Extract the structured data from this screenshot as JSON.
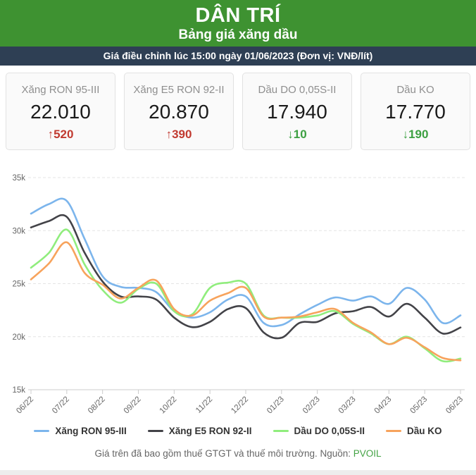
{
  "header": {
    "logo": "DÂN TRÍ",
    "subtitle": "Bảng giá xăng dầu"
  },
  "info_bar": {
    "text": "Giá điều chỉnh lúc 15:00 ngày 01/06/2023 (Đơn vị: VNĐ/lít)"
  },
  "cards": [
    {
      "label": "Xăng RON 95-III",
      "value": "22.010",
      "arrow": "↑",
      "change": "520",
      "direction": "up"
    },
    {
      "label": "Xăng E5 RON 92-II",
      "value": "20.870",
      "arrow": "↑",
      "change": "390",
      "direction": "up"
    },
    {
      "label": "Dầu DO 0,05S-II",
      "value": "17.940",
      "arrow": "↓",
      "change": "10",
      "direction": "down"
    },
    {
      "label": "Dầu KO",
      "value": "17.770",
      "arrow": "↓",
      "change": "190",
      "direction": "down"
    }
  ],
  "colors": {
    "header_green": "#3e9231",
    "info_bar": "#2e3f54",
    "up_red": "#c13a30",
    "down_green": "#3da042",
    "grid": "#e4e4e4",
    "axis": "#cccccc",
    "tick_label": "#666666"
  },
  "chart_data": {
    "type": "line",
    "title": "",
    "xlabel": "",
    "ylabel": "",
    "unit": "VNĐ/lít",
    "ylim": [
      15000,
      35000
    ],
    "y_ticks": [
      15000,
      20000,
      25000,
      30000,
      35000
    ],
    "y_tick_labels": [
      "15k",
      "20k",
      "25k",
      "30k",
      "35k"
    ],
    "x_tick_labels": [
      "06/22",
      "07/22",
      "08/22",
      "09/22",
      "10/22",
      "11/22",
      "12/22",
      "01/23",
      "02/23",
      "03/23",
      "04/23",
      "05/23",
      "06/23"
    ],
    "x_note": "25 samples at half-month spacing from 06/22 to 06/23",
    "grid": "horizontal-dashed",
    "legend_position": "bottom",
    "series": [
      {
        "name": "Xăng RON 95-III",
        "color": "#7cb5ec",
        "values": [
          31600,
          32500,
          32800,
          29200,
          25700,
          24700,
          24600,
          24200,
          22400,
          21800,
          22300,
          23500,
          23800,
          21300,
          21100,
          22100,
          23000,
          23700,
          23400,
          23800,
          23100,
          24600,
          23500,
          21300,
          22010
        ]
      },
      {
        "name": "Xăng E5 RON 92-II",
        "color": "#434348",
        "values": [
          30300,
          30900,
          31300,
          27900,
          25200,
          23800,
          23800,
          23500,
          21800,
          20900,
          21400,
          22600,
          22700,
          20400,
          19900,
          21300,
          21400,
          22200,
          22400,
          22800,
          21900,
          23100,
          21800,
          20300,
          20870
        ]
      },
      {
        "name": "Dầu DO 0,05S-II",
        "color": "#90ed7d",
        "values": [
          26500,
          27900,
          30100,
          26800,
          24400,
          23200,
          24500,
          25000,
          22400,
          22100,
          24600,
          25100,
          25000,
          22000,
          21800,
          21800,
          22000,
          22400,
          21200,
          20300,
          19300,
          20000,
          18900,
          17700,
          17940
        ]
      },
      {
        "name": "Dầu KO",
        "color": "#f7a35c",
        "values": [
          25400,
          26900,
          28900,
          26000,
          24900,
          23600,
          24600,
          25300,
          22600,
          22000,
          23400,
          24100,
          24600,
          21900,
          21800,
          21900,
          22300,
          22600,
          21300,
          20400,
          19300,
          19900,
          19000,
          18000,
          17770
        ]
      }
    ]
  },
  "footer": {
    "text": "Giá trên đã bao gồm thuế GTGT và thuế môi trường. Nguồn:",
    "source_link": "PVOIL"
  }
}
